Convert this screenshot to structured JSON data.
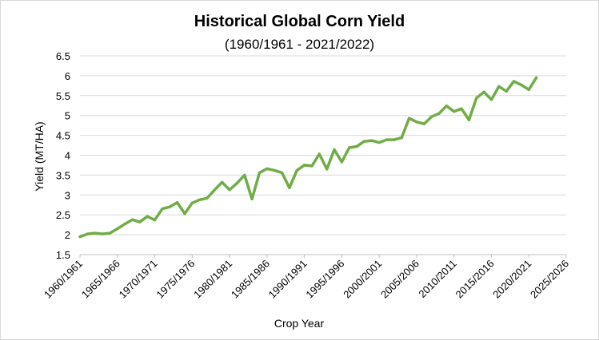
{
  "chart_data": {
    "type": "line",
    "title": "Historical Global Corn Yield",
    "subtitle": "(1960/1961 - 2021/2022)",
    "xlabel": "Crop Year",
    "ylabel": "Yield  (MT/HA)",
    "ylim": [
      1.5,
      6.5
    ],
    "yticks": [
      "1.5",
      "2",
      "2.5",
      "3",
      "3.5",
      "4",
      "4.5",
      "5",
      "5.5",
      "6",
      "6.5"
    ],
    "xticks": [
      "1960/1961",
      "1965/1966",
      "1970/1971",
      "1975/1976",
      "1980/1981",
      "1985/1986",
      "1990/1991",
      "1995/1996",
      "2000/2001",
      "2005/2006",
      "2010/2011",
      "2015/2016",
      "2020/2021",
      "2025/2026"
    ],
    "grid": true,
    "line_color": "#70ad47",
    "series": [
      {
        "x": [
          "1960/1961",
          "1961/1962",
          "1962/1963",
          "1963/1964",
          "1964/1965",
          "1965/1966",
          "1966/1967",
          "1967/1968",
          "1968/1969",
          "1969/1970",
          "1970/1971",
          "1971/1972",
          "1972/1973",
          "1973/1974",
          "1974/1975",
          "1975/1976",
          "1976/1977",
          "1977/1978",
          "1978/1979",
          "1979/1980",
          "1980/1981",
          "1981/1982",
          "1982/1983",
          "1983/1984",
          "1984/1985",
          "1985/1986",
          "1986/1987",
          "1987/1988",
          "1988/1989",
          "1989/1990",
          "1990/1991",
          "1991/1992",
          "1992/1993",
          "1993/1994",
          "1994/1995",
          "1995/1996",
          "1996/1997",
          "1997/1998",
          "1998/1999",
          "1999/2000",
          "2000/2001",
          "2001/2002",
          "2002/2003",
          "2003/2004",
          "2004/2005",
          "2005/2006",
          "2006/2007",
          "2007/2008",
          "2008/2009",
          "2009/2010",
          "2010/2011",
          "2011/2012",
          "2012/2013",
          "2013/2014",
          "2014/2015",
          "2015/2016",
          "2016/2017",
          "2017/2018",
          "2018/2019",
          "2019/2020",
          "2020/2021",
          "2021/2022"
        ],
        "values": [
          1.95,
          2.02,
          2.04,
          2.02,
          2.04,
          2.15,
          2.27,
          2.38,
          2.32,
          2.46,
          2.37,
          2.65,
          2.7,
          2.81,
          2.53,
          2.8,
          2.88,
          2.92,
          3.13,
          3.32,
          3.13,
          3.3,
          3.5,
          2.9,
          3.56,
          3.66,
          3.62,
          3.56,
          3.18,
          3.62,
          3.75,
          3.73,
          4.03,
          3.65,
          4.14,
          3.83,
          4.19,
          4.22,
          4.35,
          4.37,
          4.32,
          4.39,
          4.39,
          4.44,
          4.93,
          4.84,
          4.79,
          4.97,
          5.05,
          5.24,
          5.1,
          5.17,
          4.89,
          5.44,
          5.59,
          5.4,
          5.73,
          5.61,
          5.86,
          5.77,
          5.65,
          5.95
        ]
      }
    ]
  }
}
